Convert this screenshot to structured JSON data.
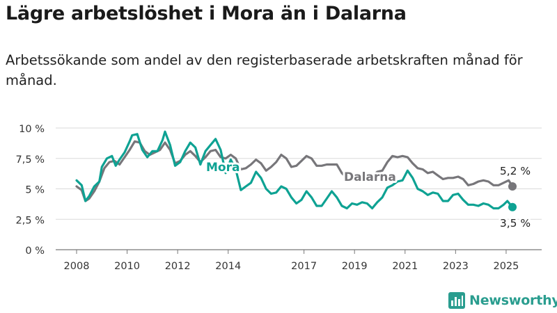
{
  "title": "Lägre arbetslöshet i Mora än i Dalarna",
  "subtitle": "Arbetssökande som andel av den registerbaserade arbetskraften månad för månad.",
  "brand": {
    "name": "Newsworthy",
    "color": "#2a9d8f"
  },
  "chart_data": {
    "type": "line",
    "ylim": [
      0,
      10
    ],
    "y_ticks": [
      {
        "value": 0,
        "label": "0 %"
      },
      {
        "value": 2.5,
        "label": "2,5 %"
      },
      {
        "value": 5,
        "label": "5 %"
      },
      {
        "value": 7.5,
        "label": "7,5 %"
      },
      {
        "value": 10,
        "label": "10 %"
      }
    ],
    "xlim": [
      2008,
      2025.75
    ],
    "x_ticks": [
      {
        "value": 2008,
        "label": "2008"
      },
      {
        "value": 2010,
        "label": "2010"
      },
      {
        "value": 2012,
        "label": "2012"
      },
      {
        "value": 2014,
        "label": "2014"
      },
      {
        "value": 2017,
        "label": "2017"
      },
      {
        "value": 2019,
        "label": "2019"
      },
      {
        "value": 2021,
        "label": "2021"
      },
      {
        "value": 2023,
        "label": "2023"
      },
      {
        "value": 2025,
        "label": "2025"
      }
    ],
    "series": [
      {
        "name": "Dalarna",
        "color": "#77767a",
        "end_label": "5,2 %",
        "points": [
          [
            2008.0,
            5.2
          ],
          [
            2008.2,
            4.9
          ],
          [
            2008.35,
            4.0
          ],
          [
            2008.5,
            4.2
          ],
          [
            2008.7,
            4.8
          ],
          [
            2008.9,
            5.6
          ],
          [
            2009.1,
            6.7
          ],
          [
            2009.3,
            7.2
          ],
          [
            2009.5,
            7.3
          ],
          [
            2009.7,
            7.0
          ],
          [
            2009.9,
            7.6
          ],
          [
            2010.1,
            8.2
          ],
          [
            2010.3,
            8.9
          ],
          [
            2010.5,
            8.8
          ],
          [
            2010.7,
            8.1
          ],
          [
            2010.9,
            7.8
          ],
          [
            2011.1,
            8.0
          ],
          [
            2011.3,
            8.2
          ],
          [
            2011.5,
            8.8
          ],
          [
            2011.7,
            8.2
          ],
          [
            2011.9,
            7.1
          ],
          [
            2012.1,
            7.3
          ],
          [
            2012.3,
            7.8
          ],
          [
            2012.5,
            8.1
          ],
          [
            2012.7,
            7.7
          ],
          [
            2012.9,
            7.2
          ],
          [
            2013.1,
            7.6
          ],
          [
            2013.3,
            8.1
          ],
          [
            2013.5,
            8.2
          ],
          [
            2013.7,
            7.6
          ],
          [
            2013.9,
            7.5
          ],
          [
            2014.1,
            7.8
          ],
          [
            2014.3,
            7.5
          ],
          [
            2014.5,
            6.6
          ],
          [
            2014.7,
            6.7
          ],
          [
            2014.9,
            7.0
          ],
          [
            2015.1,
            7.4
          ],
          [
            2015.3,
            7.1
          ],
          [
            2015.5,
            6.5
          ],
          [
            2015.7,
            6.8
          ],
          [
            2015.9,
            7.2
          ],
          [
            2016.1,
            7.8
          ],
          [
            2016.3,
            7.5
          ],
          [
            2016.5,
            6.8
          ],
          [
            2016.7,
            6.9
          ],
          [
            2016.9,
            7.3
          ],
          [
            2017.1,
            7.7
          ],
          [
            2017.3,
            7.5
          ],
          [
            2017.5,
            6.9
          ],
          [
            2017.7,
            6.9
          ],
          [
            2017.9,
            7.0
          ],
          [
            2018.1,
            7.0
          ],
          [
            2018.3,
            7.0
          ],
          [
            2018.5,
            6.3
          ],
          [
            2018.7,
            5.9
          ],
          [
            2018.9,
            6.1
          ],
          [
            2019.1,
            6.0
          ],
          [
            2019.3,
            6.0
          ],
          [
            2019.5,
            6.2
          ],
          [
            2019.7,
            6.0
          ],
          [
            2019.9,
            6.4
          ],
          [
            2020.1,
            6.5
          ],
          [
            2020.3,
            7.2
          ],
          [
            2020.5,
            7.7
          ],
          [
            2020.7,
            7.6
          ],
          [
            2020.9,
            7.7
          ],
          [
            2021.1,
            7.6
          ],
          [
            2021.3,
            7.1
          ],
          [
            2021.5,
            6.7
          ],
          [
            2021.7,
            6.6
          ],
          [
            2021.9,
            6.3
          ],
          [
            2022.1,
            6.4
          ],
          [
            2022.3,
            6.1
          ],
          [
            2022.5,
            5.8
          ],
          [
            2022.7,
            5.9
          ],
          [
            2022.9,
            5.9
          ],
          [
            2023.1,
            6.0
          ],
          [
            2023.3,
            5.8
          ],
          [
            2023.5,
            5.3
          ],
          [
            2023.7,
            5.4
          ],
          [
            2023.9,
            5.6
          ],
          [
            2024.1,
            5.7
          ],
          [
            2024.3,
            5.6
          ],
          [
            2024.5,
            5.3
          ],
          [
            2024.7,
            5.3
          ],
          [
            2024.9,
            5.5
          ],
          [
            2025.1,
            5.7
          ],
          [
            2025.25,
            5.2
          ]
        ]
      },
      {
        "name": "Mora",
        "color": "#0ea293",
        "end_label": "3,5 %",
        "points": [
          [
            2008.0,
            5.7
          ],
          [
            2008.2,
            5.3
          ],
          [
            2008.35,
            4.0
          ],
          [
            2008.5,
            4.4
          ],
          [
            2008.7,
            5.2
          ],
          [
            2008.9,
            5.6
          ],
          [
            2009.0,
            6.8
          ],
          [
            2009.2,
            7.5
          ],
          [
            2009.4,
            7.7
          ],
          [
            2009.55,
            6.9
          ],
          [
            2009.7,
            7.4
          ],
          [
            2009.9,
            8.0
          ],
          [
            2010.1,
            8.9
          ],
          [
            2010.2,
            9.4
          ],
          [
            2010.4,
            9.5
          ],
          [
            2010.6,
            8.2
          ],
          [
            2010.8,
            7.6
          ],
          [
            2011.0,
            8.1
          ],
          [
            2011.2,
            8.1
          ],
          [
            2011.4,
            9.0
          ],
          [
            2011.5,
            9.7
          ],
          [
            2011.7,
            8.6
          ],
          [
            2011.9,
            6.9
          ],
          [
            2012.1,
            7.2
          ],
          [
            2012.3,
            8.1
          ],
          [
            2012.5,
            8.8
          ],
          [
            2012.7,
            8.4
          ],
          [
            2012.9,
            7.0
          ],
          [
            2013.1,
            8.1
          ],
          [
            2013.3,
            8.6
          ],
          [
            2013.5,
            9.1
          ],
          [
            2013.7,
            8.2
          ],
          [
            2013.9,
            6.3
          ],
          [
            2014.1,
            7.4
          ],
          [
            2014.3,
            6.6
          ],
          [
            2014.5,
            4.9
          ],
          [
            2014.7,
            5.2
          ],
          [
            2014.9,
            5.5
          ],
          [
            2015.1,
            6.4
          ],
          [
            2015.3,
            5.9
          ],
          [
            2015.5,
            5.0
          ],
          [
            2015.7,
            4.6
          ],
          [
            2015.9,
            4.7
          ],
          [
            2016.1,
            5.2
          ],
          [
            2016.3,
            5.0
          ],
          [
            2016.5,
            4.3
          ],
          [
            2016.7,
            3.8
          ],
          [
            2016.9,
            4.1
          ],
          [
            2017.1,
            4.8
          ],
          [
            2017.3,
            4.3
          ],
          [
            2017.5,
            3.6
          ],
          [
            2017.7,
            3.6
          ],
          [
            2017.9,
            4.2
          ],
          [
            2018.1,
            4.8
          ],
          [
            2018.3,
            4.3
          ],
          [
            2018.5,
            3.6
          ],
          [
            2018.7,
            3.4
          ],
          [
            2018.9,
            3.8
          ],
          [
            2019.1,
            3.7
          ],
          [
            2019.3,
            3.9
          ],
          [
            2019.5,
            3.8
          ],
          [
            2019.7,
            3.4
          ],
          [
            2019.9,
            3.9
          ],
          [
            2020.1,
            4.3
          ],
          [
            2020.3,
            5.1
          ],
          [
            2020.5,
            5.3
          ],
          [
            2020.7,
            5.6
          ],
          [
            2020.9,
            5.7
          ],
          [
            2021.1,
            6.5
          ],
          [
            2021.3,
            5.9
          ],
          [
            2021.5,
            5.0
          ],
          [
            2021.7,
            4.8
          ],
          [
            2021.9,
            4.5
          ],
          [
            2022.1,
            4.7
          ],
          [
            2022.3,
            4.6
          ],
          [
            2022.5,
            4.0
          ],
          [
            2022.7,
            4.0
          ],
          [
            2022.9,
            4.5
          ],
          [
            2023.1,
            4.6
          ],
          [
            2023.3,
            4.1
          ],
          [
            2023.5,
            3.7
          ],
          [
            2023.7,
            3.7
          ],
          [
            2023.9,
            3.6
          ],
          [
            2024.1,
            3.8
          ],
          [
            2024.3,
            3.7
          ],
          [
            2024.5,
            3.4
          ],
          [
            2024.7,
            3.4
          ],
          [
            2024.9,
            3.7
          ],
          [
            2025.05,
            4.0
          ],
          [
            2025.25,
            3.5
          ]
        ]
      }
    ]
  }
}
